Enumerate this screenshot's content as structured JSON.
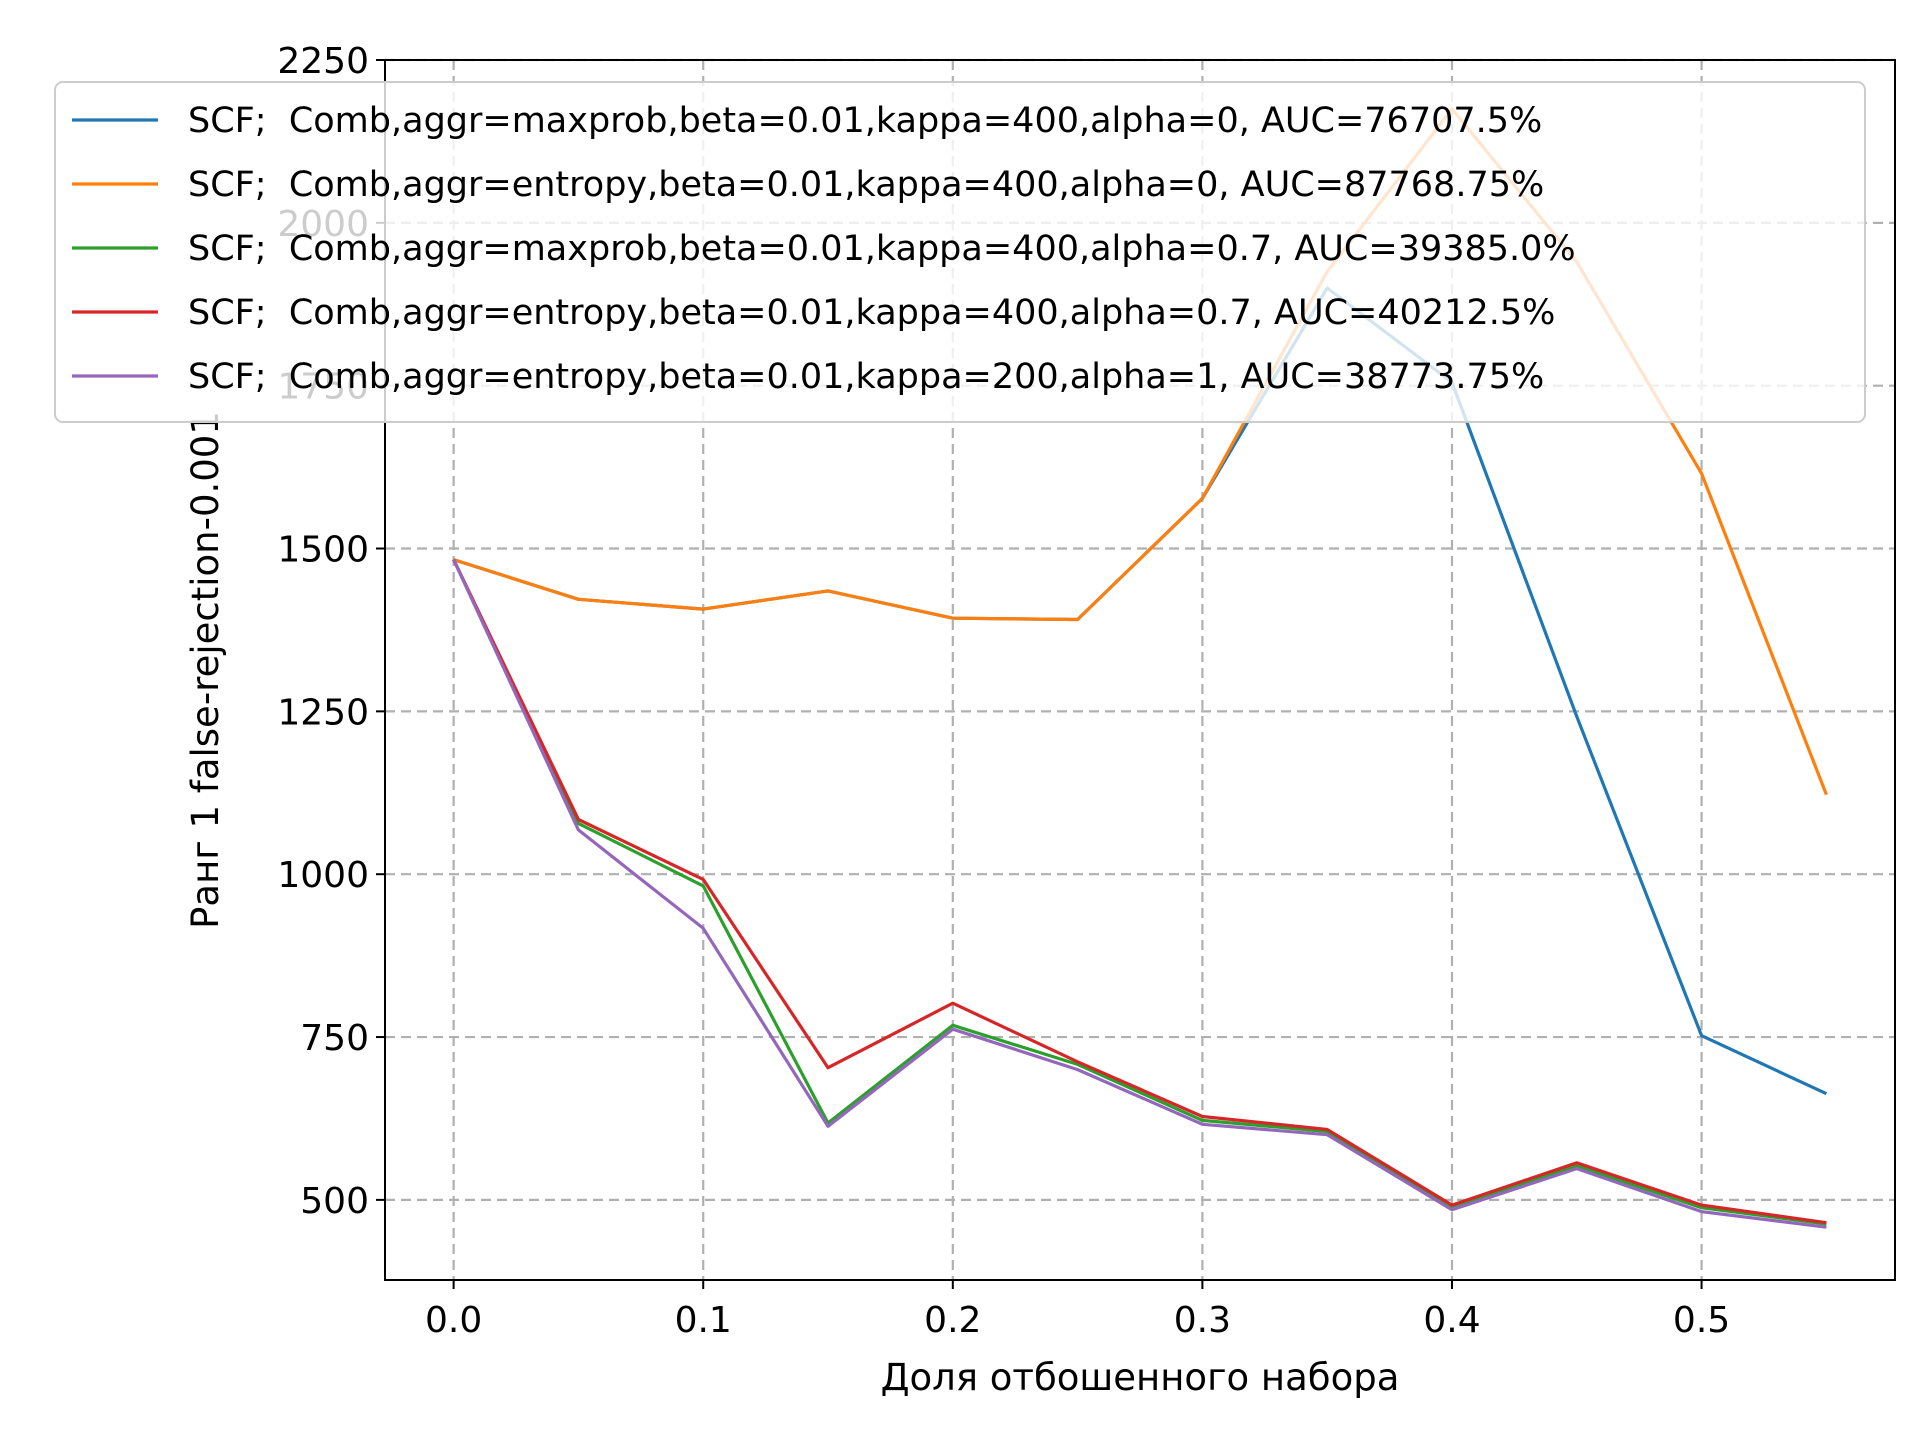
{
  "chart_data": {
    "type": "line",
    "title": "",
    "xlabel": "Доля отбошенного набора",
    "ylabel": "Ранг 1 false-rejection-0.001",
    "xlim": [
      -0.0275,
      0.5775
    ],
    "ylim": [
      377,
      2250
    ],
    "xticks": [
      0.0,
      0.1,
      0.2,
      0.3,
      0.4,
      0.5
    ],
    "xtick_labels": [
      "0.0",
      "0.1",
      "0.2",
      "0.3",
      "0.4",
      "0.5"
    ],
    "yticks": [
      500,
      750,
      1000,
      1250,
      1500,
      1750,
      2000,
      2250
    ],
    "ytick_labels": [
      "500",
      "750",
      "1000",
      "1250",
      "1500",
      "1750",
      "2000",
      "2250"
    ],
    "grid": true,
    "legend_position": "top",
    "x": [
      0.0,
      0.05,
      0.1,
      0.15,
      0.2,
      0.25,
      0.3,
      0.35,
      0.4,
      0.45,
      0.5,
      0.55
    ],
    "series": [
      {
        "name": "SCF;  Comb,aggr=maxprob,beta=0.01,kappa=400,alpha=0, AUC=76707.5%",
        "color": "#1f77b4",
        "values": [
          1483,
          1422,
          1407,
          1435,
          1393,
          1391,
          1577,
          1900,
          1755,
          1242,
          752,
          663
        ]
      },
      {
        "name": "SCF;  Comb,aggr=entropy,beta=0.01,kappa=400,alpha=0, AUC=87768.75%",
        "color": "#ff7f0e",
        "values": [
          1483,
          1422,
          1407,
          1435,
          1393,
          1391,
          1577,
          1925,
          2175,
          1940,
          1615,
          1122
        ]
      },
      {
        "name": "SCF;  Comb,aggr=maxprob,beta=0.01,kappa=400,alpha=0.7, AUC=39385.0%",
        "color": "#2ca02c",
        "values": [
          1483,
          1078,
          982,
          618,
          768,
          708,
          622,
          605,
          490,
          552,
          488,
          463
        ]
      },
      {
        "name": "SCF;  Comb,aggr=entropy,beta=0.01,kappa=400,alpha=0.7, AUC=40212.5%",
        "color": "#d62728",
        "values": [
          1483,
          1084,
          992,
          703,
          802,
          712,
          628,
          608,
          492,
          557,
          492,
          465
        ]
      },
      {
        "name": "SCF;  Comb,aggr=entropy,beta=0.01,kappa=200,alpha=1, AUC=38773.75%",
        "color": "#9467bd",
        "values": [
          1483,
          1068,
          917,
          613,
          762,
          700,
          616,
          600,
          485,
          548,
          482,
          458
        ]
      }
    ]
  }
}
